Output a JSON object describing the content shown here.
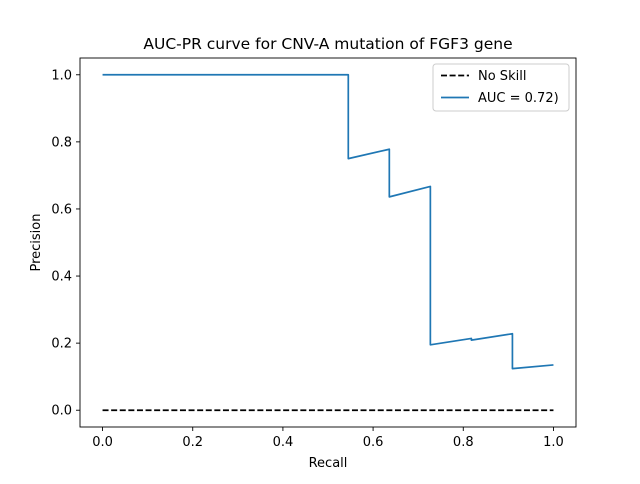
{
  "chart_data": {
    "type": "line",
    "title": "AUC-PR curve for CNV-A mutation of FGF3 gene",
    "xlabel": "Recall",
    "ylabel": "Precision",
    "xlim": [
      -0.05,
      1.05
    ],
    "ylim": [
      -0.05,
      1.05
    ],
    "grid": false,
    "legend_position": "top-right",
    "x_ticks": [
      {
        "value": 0.0,
        "label": "0.0"
      },
      {
        "value": 0.2,
        "label": "0.2"
      },
      {
        "value": 0.4,
        "label": "0.4"
      },
      {
        "value": 0.6,
        "label": "0.6"
      },
      {
        "value": 0.8,
        "label": "0.8"
      },
      {
        "value": 1.0,
        "label": "1.0"
      }
    ],
    "y_ticks": [
      {
        "value": 0.0,
        "label": "0.0"
      },
      {
        "value": 0.2,
        "label": "0.2"
      },
      {
        "value": 0.4,
        "label": "0.4"
      },
      {
        "value": 0.6,
        "label": "0.6"
      },
      {
        "value": 0.8,
        "label": "0.8"
      },
      {
        "value": 1.0,
        "label": "1.0"
      }
    ],
    "series": [
      {
        "name": "No Skill",
        "color": "#000000",
        "line_style": "dashed",
        "x": [
          0.0,
          1.0
        ],
        "y": [
          0.0,
          0.0
        ]
      },
      {
        "name": "AUC = 0.72)",
        "color": "#1f77b4",
        "line_style": "solid",
        "x": [
          0.0,
          0.545,
          0.545,
          0.636,
          0.636,
          0.727,
          0.727,
          0.818,
          0.818,
          0.909,
          0.909,
          1.0
        ],
        "y": [
          1.0,
          1.0,
          0.75,
          0.778,
          0.636,
          0.667,
          0.195,
          0.214,
          0.209,
          0.228,
          0.124,
          0.135
        ]
      }
    ]
  }
}
